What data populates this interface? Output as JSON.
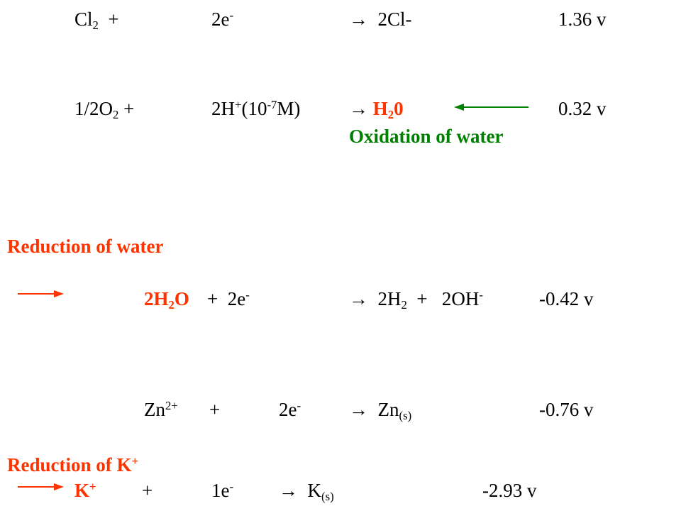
{
  "rows": [
    [
      [
        "Cl",
        "2",
        "  +"
      ],
      [
        "2e",
        "-"
      ],
      [
        "→  2Cl-"
      ],
      [
        "1.36 v"
      ]
    ],
    [
      [
        "1/2O",
        "2",
        " +"
      ],
      [
        "2H",
        "+",
        "(10",
        "-7",
        "M)"
      ],
      [
        "→ ",
        "H",
        "2",
        "0"
      ],
      [
        "0.32 v"
      ]
    ],
    [
      [
        "Oxidation of water"
      ]
    ],
    [
      [
        "Reduction of water"
      ]
    ],
    [
      [
        "2H",
        "2",
        "O"
      ],
      [
        "+  2e",
        "-"
      ],
      [
        "→  2H",
        "2",
        "  +   2OH",
        "-"
      ],
      [
        "-0.42 v"
      ]
    ],
    [
      [
        "Zn",
        "2+"
      ],
      [
        "+"
      ],
      [
        "2e",
        "-"
      ],
      [
        "→  Zn",
        "(s)"
      ],
      [
        "-0.76 v"
      ]
    ],
    [
      [
        "Reduction of K",
        "+"
      ]
    ],
    [
      [
        "K",
        "+"
      ],
      [
        "+"
      ],
      [
        "1e",
        "-"
      ],
      [
        "→  K",
        "(s)"
      ],
      [
        "-2.93 v"
      ]
    ]
  ]
}
